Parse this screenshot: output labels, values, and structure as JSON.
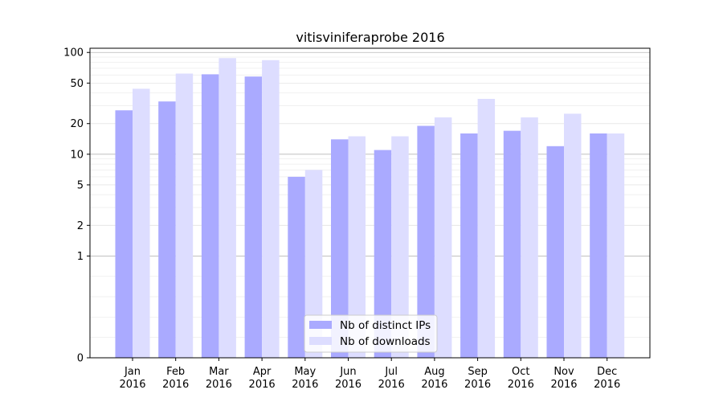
{
  "chart_data": {
    "type": "bar",
    "title": "vitisviniferaprobe 2016",
    "xlabel": "",
    "ylabel": "",
    "y_scale": "symlog",
    "ylim": [
      0,
      110
    ],
    "y_ticks": [
      0,
      1,
      2,
      5,
      10,
      20,
      50,
      100
    ],
    "grid": true,
    "legend_position": "lower center",
    "categories": [
      {
        "month": "Jan",
        "year": "2016"
      },
      {
        "month": "Feb",
        "year": "2016"
      },
      {
        "month": "Mar",
        "year": "2016"
      },
      {
        "month": "Apr",
        "year": "2016"
      },
      {
        "month": "May",
        "year": "2016"
      },
      {
        "month": "Jun",
        "year": "2016"
      },
      {
        "month": "Jul",
        "year": "2016"
      },
      {
        "month": "Aug",
        "year": "2016"
      },
      {
        "month": "Sep",
        "year": "2016"
      },
      {
        "month": "Oct",
        "year": "2016"
      },
      {
        "month": "Nov",
        "year": "2016"
      },
      {
        "month": "Dec",
        "year": "2016"
      }
    ],
    "series": [
      {
        "name": "Nb of distinct IPs",
        "color": "#aaaaff",
        "values": [
          27,
          33,
          61,
          58,
          6,
          14,
          11,
          19,
          16,
          17,
          12,
          16
        ]
      },
      {
        "name": "Nb of downloads",
        "color": "#ddddff",
        "values": [
          44,
          62,
          88,
          84,
          7,
          15,
          15,
          23,
          35,
          23,
          25,
          16
        ]
      }
    ]
  }
}
